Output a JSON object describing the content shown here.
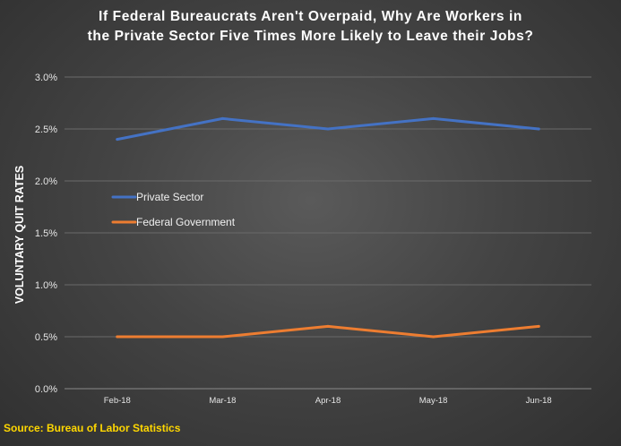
{
  "chart_data": {
    "type": "line",
    "title_lines": [
      "If Federal Bureaucrats Aren't Overpaid, Why Are Workers in",
      "the Private Sector Five Times More Likely to Leave their Jobs?"
    ],
    "ylabel": "VOLUNTARY QUIT RATES",
    "xlabel": "",
    "categories": [
      "Feb-18",
      "Mar-18",
      "Apr-18",
      "May-18",
      "Jun-18"
    ],
    "y_ticks": [
      "0.0%",
      "0.5%",
      "1.0%",
      "1.5%",
      "2.0%",
      "2.5%",
      "3.0%"
    ],
    "ylim": [
      0,
      3.0
    ],
    "grid": true,
    "legend_position": "left-center",
    "series": [
      {
        "name": "Private Sector",
        "color": "#4472c4",
        "values": [
          2.4,
          2.6,
          2.5,
          2.6,
          2.5
        ]
      },
      {
        "name": "Federal Government",
        "color": "#ed7d31",
        "values": [
          0.5,
          0.5,
          0.6,
          0.5,
          0.6
        ]
      }
    ]
  },
  "source": "Source: Bureau of Labor Statistics"
}
